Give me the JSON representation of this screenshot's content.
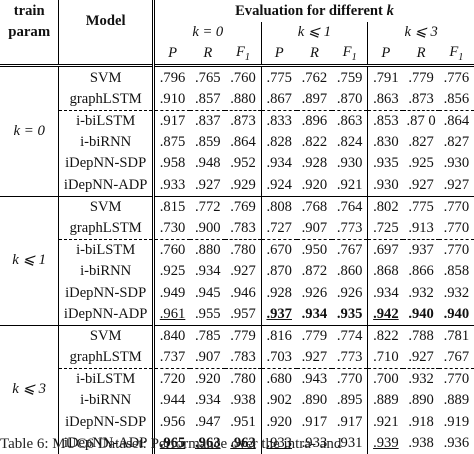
{
  "header": {
    "param_line1": "train",
    "param_line2": "param",
    "model": "Model",
    "eval_title": "Evaluation for different k",
    "k_groups": [
      "k = 0",
      "k ⩽ 1",
      "k ⩽ 3"
    ],
    "metrics": [
      "P",
      "R",
      "F1"
    ]
  },
  "groups": [
    {
      "param": "k = 0",
      "rows": [
        {
          "model": "SVM",
          "values": [
            ".796",
            ".765",
            ".760",
            ".775",
            ".762",
            ".759",
            ".791",
            ".779",
            ".776"
          ]
        },
        {
          "model": "graphLSTM",
          "values": [
            ".910",
            ".857",
            ".880",
            ".867",
            ".897",
            ".870",
            ".863",
            ".873",
            ".856"
          ]
        },
        {
          "model": "i-biLSTM",
          "values": [
            ".917",
            ".837",
            ".873",
            ".833",
            ".896",
            ".863",
            ".853",
            ".87 0",
            ".864"
          ]
        },
        {
          "model": "i-biRNN",
          "values": [
            ".875",
            ".859",
            ".864",
            ".828",
            ".822",
            ".824",
            ".830",
            ".827",
            ".827"
          ]
        },
        {
          "model": "iDepNN-SDP",
          "values": [
            ".958",
            ".948",
            ".952",
            ".934",
            ".928",
            ".930",
            ".935",
            ".925",
            ".930"
          ]
        },
        {
          "model": "iDepNN-ADP",
          "values": [
            ".933",
            ".927",
            ".929",
            ".924",
            ".920",
            ".921",
            ".930",
            ".927",
            ".927"
          ]
        }
      ]
    },
    {
      "param": "k ⩽ 1",
      "rows": [
        {
          "model": "SVM",
          "values": [
            ".815",
            ".772",
            ".769",
            ".808",
            ".768",
            ".764",
            ".802",
            ".775",
            ".770"
          ]
        },
        {
          "model": "graphLSTM",
          "values": [
            ".730",
            ".900",
            ".783",
            ".727",
            ".907",
            ".773",
            ".725",
            ".913",
            ".770"
          ]
        },
        {
          "model": "i-biLSTM",
          "values": [
            ".760",
            ".880",
            ".780",
            ".670",
            ".950",
            ".767",
            ".697",
            ".937",
            ".770"
          ]
        },
        {
          "model": "i-biRNN",
          "values": [
            ".925",
            ".934",
            ".927",
            ".870",
            ".872",
            ".860",
            ".868",
            ".866",
            ".858"
          ]
        },
        {
          "model": "iDepNN-SDP",
          "values": [
            ".949",
            ".945",
            ".946",
            ".928",
            ".926",
            ".926",
            ".934",
            ".932",
            ".932"
          ]
        },
        {
          "model": "iDepNN-ADP",
          "values": [
            ".961",
            ".955",
            ".957",
            ".937",
            ".934",
            ".935",
            ".942",
            ".940",
            ".940"
          ]
        }
      ]
    },
    {
      "param": "k ⩽ 3",
      "rows": [
        {
          "model": "SVM",
          "values": [
            ".840",
            ".785",
            ".779",
            ".816",
            ".779",
            ".774",
            ".822",
            ".788",
            ".781"
          ]
        },
        {
          "model": "graphLSTM",
          "values": [
            ".737",
            ".907",
            ".783",
            ".703",
            ".927",
            ".773",
            ".710",
            ".927",
            ".767"
          ]
        },
        {
          "model": "i-biLSTM",
          "values": [
            ".720",
            ".920",
            ".780",
            ".680",
            ".943",
            ".770",
            ".700",
            ".932",
            ".770"
          ]
        },
        {
          "model": "i-biRNN",
          "values": [
            ".944",
            ".934",
            ".938",
            ".902",
            ".890",
            ".895",
            ".889",
            ".890",
            ".889"
          ]
        },
        {
          "model": "iDepNN-SDP",
          "values": [
            ".956",
            ".947",
            ".951",
            ".920",
            ".917",
            ".917",
            ".921",
            ".918",
            ".919"
          ]
        },
        {
          "model": "iDepNN-ADP",
          "values": [
            ".965",
            ".963",
            ".963",
            ".933",
            ".933",
            ".931",
            ".939",
            ".938",
            ".936"
          ]
        }
      ]
    }
  ],
  "emphasis": {
    "underline": [
      [
        1,
        5,
        0
      ],
      [
        2,
        5,
        3
      ],
      [
        2,
        5,
        6
      ]
    ],
    "bold_underline": [
      [
        1,
        5,
        3
      ],
      [
        1,
        5,
        6
      ],
      [
        2,
        5,
        0
      ],
      [
        2,
        5,
        1
      ],
      [
        2,
        5,
        2
      ]
    ],
    "bold": [
      [
        1,
        5,
        4
      ],
      [
        1,
        5,
        5
      ],
      [
        1,
        5,
        7
      ],
      [
        1,
        5,
        8
      ]
    ]
  },
  "caption": "Table 6: MUC6 Dataset: Performance over the intra- and"
}
